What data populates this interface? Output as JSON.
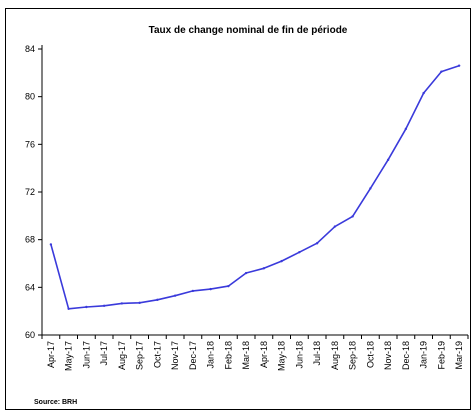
{
  "chart_data": {
    "type": "line",
    "title": "Taux de change nominal de fin de période",
    "source": "Source: BRH",
    "categories": [
      "Apr-17",
      "May-17",
      "Jun-17",
      "Jul-17",
      "Aug-17",
      "Sep-17",
      "Oct-17",
      "Nov-17",
      "Dec-17",
      "Jan-18",
      "Feb-18",
      "Mar-18",
      "Apr-18",
      "May-18",
      "Jun-18",
      "Jul-18",
      "Aug-18",
      "Sep-18",
      "Oct-18",
      "Nov-18",
      "Dec-18",
      "Jan-19",
      "Feb-19",
      "Mar-19"
    ],
    "series": [
      {
        "values": [
          67.6,
          62.2,
          62.35,
          62.45,
          62.65,
          62.7,
          62.95,
          63.3,
          63.7,
          63.85,
          64.1,
          65.2,
          65.6,
          66.2,
          66.95,
          67.7,
          69.1,
          69.95,
          72.3,
          74.7,
          77.3,
          80.3,
          82.1,
          82.6
        ],
        "color": "#3a3adb"
      }
    ],
    "ylim": [
      60,
      84
    ],
    "yticks": [
      60,
      64,
      68,
      72,
      76,
      80,
      84
    ],
    "grid": false,
    "legend": "none"
  }
}
